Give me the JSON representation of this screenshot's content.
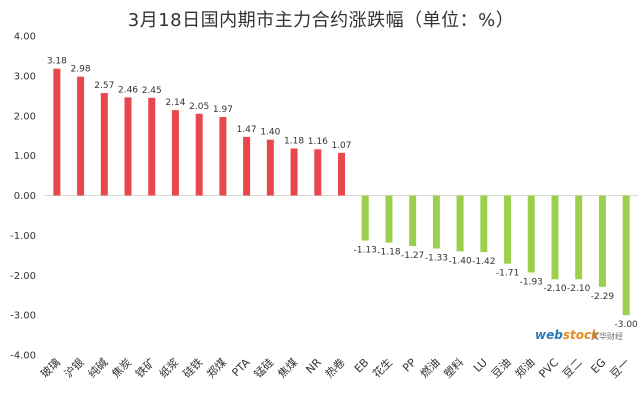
{
  "title": "3月18日国内期市主力合约涨跌幅（单位：%）",
  "watermark": {
    "logo_main": "web",
    "logo_accent": "stock",
    "subtitle": "文华财经"
  },
  "colors": {
    "positive": "#e8474b",
    "negative": "#9bd04d",
    "axis": "#d9d9d9",
    "text": "#333333"
  },
  "chart_data": {
    "type": "bar",
    "title": "3月18日国内期市主力合约涨跌幅（单位：%）",
    "xlabel": "",
    "ylabel": "",
    "ylim": [
      -4.0,
      4.0
    ],
    "yticks": [
      "-4.00",
      "-3.00",
      "-2.00",
      "-1.00",
      "0.00",
      "1.00",
      "2.00",
      "3.00",
      "4.00"
    ],
    "grid": false,
    "categories": [
      "玻璃",
      "沪银",
      "纯碱",
      "焦炭",
      "铁矿",
      "纸浆",
      "硅铁",
      "郑煤",
      "PTA",
      "锰硅",
      "焦煤",
      "NR",
      "热卷",
      "EB",
      "花生",
      "PP",
      "燃油",
      "塑料",
      "LU",
      "豆油",
      "郑油",
      "PVC",
      "豆二",
      "EG",
      "豆一"
    ],
    "values": [
      3.18,
      2.98,
      2.57,
      2.46,
      2.45,
      2.14,
      2.05,
      1.97,
      1.47,
      1.4,
      1.18,
      1.16,
      1.07,
      -1.13,
      -1.18,
      -1.27,
      -1.33,
      -1.4,
      -1.42,
      -1.71,
      -1.93,
      -2.1,
      -2.1,
      -2.29,
      -3.0
    ],
    "value_labels": [
      "3.18",
      "2.98",
      "2.57",
      "2.46",
      "2.45",
      "2.14",
      "2.05",
      "1.97",
      "1.47",
      "1.40",
      "1.18",
      "1.16",
      "1.07",
      "-1.13",
      "-1.18",
      "-1.27",
      "-1.33",
      "-1.40",
      "-1.42",
      "-1.71",
      "-1.93",
      "-2.10",
      "-2.10",
      "-2.29",
      "-3.00"
    ]
  }
}
